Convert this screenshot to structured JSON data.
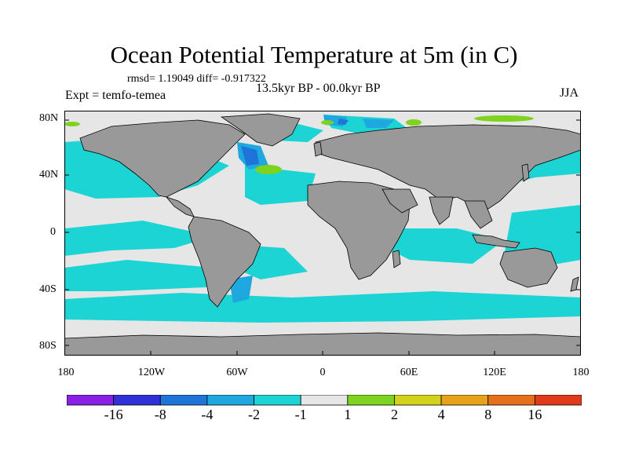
{
  "title": "Ocean Potential Temperature at 5m (in C)",
  "stats": "rmsd= 1.19049 diff= -0.917322",
  "subtitle": "13.5kyr BP - 00.0kyr BP",
  "experiment": "Expt = temfo-temea",
  "season": "JJA",
  "y_axis_labels": [
    "80N",
    "40N",
    "0",
    "40S",
    "80S"
  ],
  "x_axis_labels": [
    "180",
    "120W",
    "60W",
    "0",
    "60E",
    "120E",
    "180"
  ],
  "colorbar": {
    "labels": [
      "-16",
      "-8",
      "-4",
      "-2",
      "-1",
      "1",
      "2",
      "4",
      "8",
      "16"
    ],
    "colors": [
      "#8a1fe6",
      "#3030d8",
      "#1e74d9",
      "#1fa7e0",
      "#1cd4d4",
      "#e6e6e6",
      "#7ed31e",
      "#d2d21a",
      "#e6a31a",
      "#e6701a",
      "#e03a1a"
    ]
  },
  "colors": {
    "land": "#999999",
    "ocean_neutral": "#e6e6e6",
    "cooling_small": "#1cd4d4",
    "cooling_medium": "#1fa7e0",
    "cooling_large": "#1e74d9",
    "warming_small": "#7ed31e"
  }
}
